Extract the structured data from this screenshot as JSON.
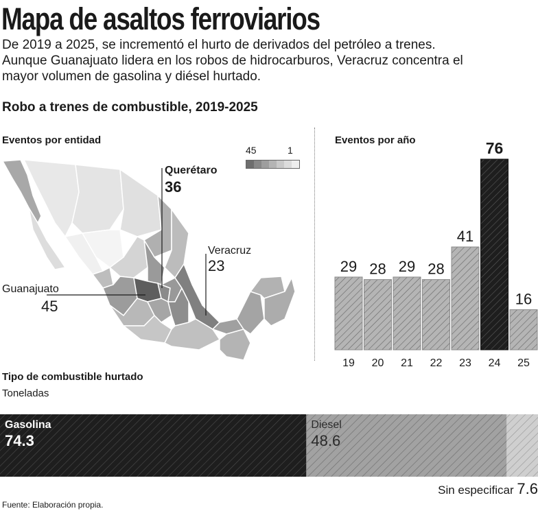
{
  "title": "Mapa de asaltos ferroviarios",
  "subtitle": "De 2019 a 2025, se incrementó el hurto de derivados del petróleo a trenes. Aunque Guanajuato lidera en los robos de hidrocarburos, Veracruz concentra el mayor volumen de gasolina y diésel hurtado.",
  "section_title": "Robo a trenes de combustible, 2019-2025",
  "source": "Fuente: Elaboración propia.",
  "colors": {
    "dark": "#222222",
    "mid": "#8c8c8c",
    "light": "#c4c4c4",
    "hatch_line": "#6a6a6a",
    "map_border": "#ffffff"
  },
  "chart_data": [
    {
      "type": "heatmap",
      "title": "Eventos por entidad",
      "legend": {
        "max_label": "45",
        "min_label": "1",
        "placement": "top-right"
      },
      "highlighted_states": [
        {
          "name": "Querétaro",
          "value": "36"
        },
        {
          "name": "Veracruz",
          "value": "23"
        },
        {
          "name": "Guanajuato",
          "value": "45"
        }
      ]
    },
    {
      "type": "bar",
      "title": "Eventos por año",
      "categories": [
        "19",
        "20",
        "21",
        "22",
        "23",
        "24",
        "25"
      ],
      "values": [
        29,
        28,
        29,
        28,
        41,
        76,
        16
      ],
      "highlight_index": 5,
      "ylim": [
        0,
        76
      ]
    },
    {
      "type": "bar",
      "title": "Tipo de combustible hurtado",
      "subtitle": "Toneladas",
      "stacked": true,
      "orientation": "horizontal",
      "series": [
        {
          "name": "Gasolina",
          "value": 74.3
        },
        {
          "name": "Diesel",
          "value": 48.6
        },
        {
          "name": "Sin especificar",
          "value": 7.6
        }
      ]
    }
  ]
}
